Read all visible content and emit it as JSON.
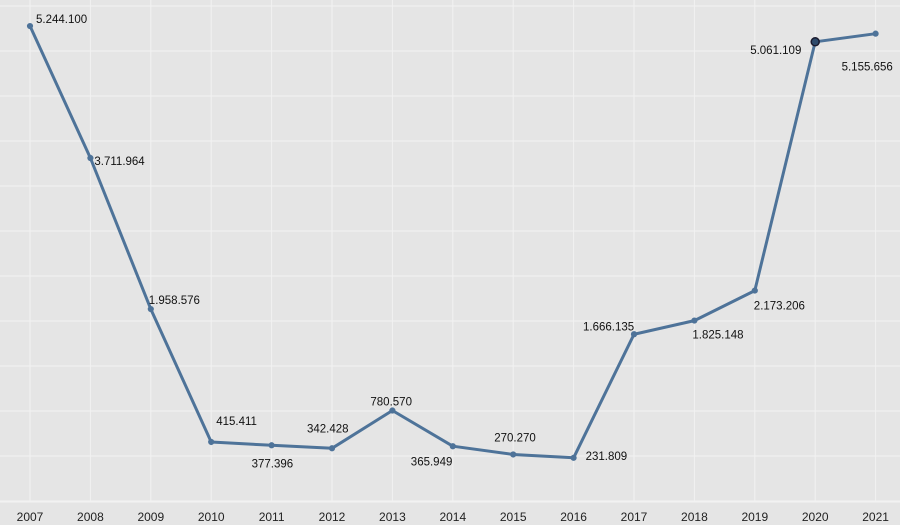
{
  "chart_data": {
    "type": "line",
    "title": "",
    "xlabel": "",
    "ylabel": "",
    "categories": [
      "2007",
      "2008",
      "2009",
      "2010",
      "2011",
      "2012",
      "2013",
      "2014",
      "2015",
      "2016",
      "2017",
      "2018",
      "2019",
      "2020",
      "2021"
    ],
    "values": [
      5244100,
      3711964,
      1958576,
      415411,
      377396,
      342428,
      780570,
      365949,
      270270,
      231809,
      1666135,
      1825148,
      2173206,
      5061109,
      5155656
    ],
    "value_labels": [
      "5.244.100",
      "3.711.964",
      "1.958.576",
      "415.411",
      "377.396",
      "342.428",
      "780.570",
      "365.949",
      "270.270",
      "231.809",
      "1.666.135",
      "1.825.148",
      "2.173.206",
      "5.061.109",
      "5.155.656"
    ],
    "highlighted_category": "2020",
    "ylim": [
      -200000,
      5500000
    ],
    "grid": true,
    "legend": "none",
    "colors": {
      "background": "#e5e5e5",
      "line": "#4e7399",
      "point": "#4e7399",
      "highlight_point": "#2e4a6b"
    }
  }
}
